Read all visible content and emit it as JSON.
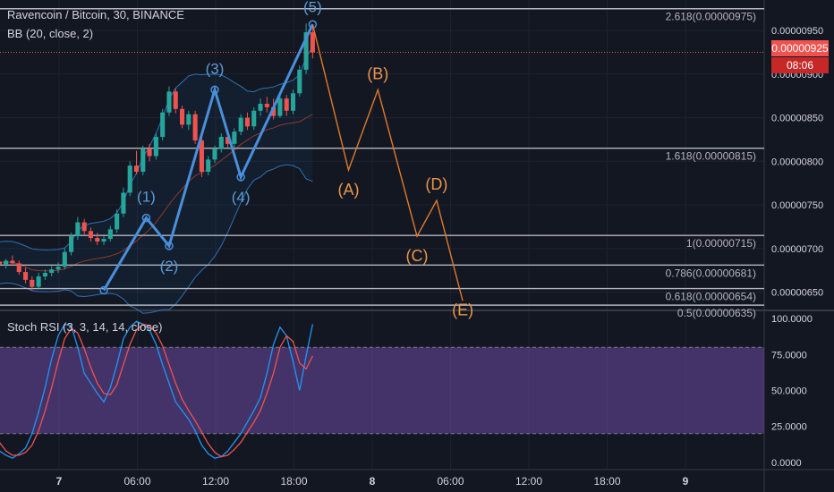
{
  "header": {
    "title": "Ravencoin / Bitcoin, 30, BINANCE",
    "bb_label": "BB (20, close, 2)",
    "stoch_label": "Stoch RSI (3, 3, 14, 14, close)"
  },
  "current_price": "0.00000925",
  "countdown": "08:06",
  "colors": {
    "background": "#131722",
    "up": "#26a69a",
    "down": "#ef5350",
    "wave": "#4a8fd9",
    "projection": "#e07a2c",
    "fib": "#b2b5be",
    "bb": "#2e72b5",
    "stoch_k": "#2196f3",
    "stoch_d": "#ef5350",
    "stoch_band": "#7e57c2"
  },
  "chart_data": [
    {
      "type": "candlestick",
      "title": "Ravencoin / Bitcoin, 30, BINANCE",
      "ylim": [
        6.3e-06,
        9.85e-06
      ],
      "y_ticks": [
        "0.00000950",
        "0.00000900",
        "0.00000850",
        "0.00000800",
        "0.00000750",
        "0.00000700",
        "0.00000650"
      ],
      "x_ticks": [
        "7",
        "06:00",
        "12:00",
        "18:00",
        "8",
        "06:00",
        "12:00",
        "18:00",
        "9"
      ],
      "last_price": 9.25e-06,
      "fib_levels": [
        {
          "label": "2.618(0.00000975)",
          "value": 9.75e-06
        },
        {
          "label": "1.618(0.00000815)",
          "value": 8.15e-06
        },
        {
          "label": "1(0.00000715)",
          "value": 7.15e-06
        },
        {
          "label": "0.786(0.00000681)",
          "value": 6.81e-06
        },
        {
          "label": "0.618(0.00000654)",
          "value": 6.54e-06
        },
        {
          "label": "0.5(0.00000635)",
          "value": 6.35e-06
        }
      ],
      "wave_labels": [
        "(1)",
        "(2)",
        "(3)",
        "(4)",
        "(5)"
      ],
      "wave_points": [
        {
          "t": -17,
          "v": 6.52e-06
        },
        {
          "t": -10.5,
          "v": 7.35e-06
        },
        {
          "t": -7,
          "v": 7.03e-06
        },
        {
          "t": 0,
          "v": 8.82e-06
        },
        {
          "t": 4,
          "v": 7.82e-06
        },
        {
          "t": 15,
          "v": 9.57e-06
        }
      ],
      "projection_labels": [
        "(A)",
        "(B)",
        "(C)",
        "(D)",
        "(E)"
      ],
      "projection_points": [
        {
          "t": 15,
          "v": 9.57e-06
        },
        {
          "t": 20.5,
          "v": 7.9e-06
        },
        {
          "t": 25,
          "v": 8.82e-06
        },
        {
          "t": 31,
          "v": 7.14e-06
        },
        {
          "t": 34,
          "v": 7.55e-06
        },
        {
          "t": 38,
          "v": 6.4e-06
        }
      ],
      "candles": [
        [
          6.88e-06,
          6.92e-06,
          6.8e-06,
          6.85e-06
        ],
        [
          6.85e-06,
          6.9e-06,
          6.78e-06,
          6.82e-06
        ],
        [
          6.82e-06,
          6.88e-06,
          6.77e-06,
          6.86e-06
        ],
        [
          6.86e-06,
          6.92e-06,
          6.8e-06,
          6.83e-06
        ],
        [
          6.83e-06,
          6.86e-06,
          6.7e-06,
          6.73e-06
        ],
        [
          6.73e-06,
          6.78e-06,
          6.6e-06,
          6.64e-06
        ],
        [
          6.64e-06,
          6.68e-06,
          6.52e-06,
          6.56e-06
        ],
        [
          6.56e-06,
          6.72e-06,
          6.54e-06,
          6.68e-06
        ],
        [
          6.68e-06,
          6.76e-06,
          6.64e-06,
          6.72e-06
        ],
        [
          6.72e-06,
          6.8e-06,
          6.68e-06,
          6.76e-06
        ],
        [
          6.76e-06,
          6.84e-06,
          6.72e-06,
          6.79e-06
        ],
        [
          6.79e-06,
          7e-06,
          6.76e-06,
          6.96e-06
        ],
        [
          6.96e-06,
          7.18e-06,
          6.92e-06,
          7.14e-06
        ],
        [
          7.14e-06,
          7.36e-06,
          7.1e-06,
          7.3e-06
        ],
        [
          7.3e-06,
          7.34e-06,
          7.16e-06,
          7.2e-06
        ],
        [
          7.2e-06,
          7.24e-06,
          7.08e-06,
          7.12e-06
        ],
        [
          7.12e-06,
          7.18e-06,
          7.04e-06,
          7.08e-06
        ],
        [
          7.08e-06,
          7.14e-06,
          7.04e-06,
          7.11e-06
        ],
        [
          7.11e-06,
          7.26e-06,
          7.08e-06,
          7.22e-06
        ],
        [
          7.22e-06,
          7.45e-06,
          7.18e-06,
          7.4e-06
        ],
        [
          7.4e-06,
          7.7e-06,
          7.36e-06,
          7.64e-06
        ],
        [
          7.64e-06,
          8e-06,
          7.6e-06,
          7.95e-06
        ],
        [
          7.95e-06,
          8.12e-06,
          7.85e-06,
          7.88e-06
        ],
        [
          7.88e-06,
          8.18e-06,
          7.84e-06,
          8.14e-06
        ],
        [
          8.14e-06,
          8.2e-06,
          8e-06,
          8.06e-06
        ],
        [
          8.06e-06,
          8.32e-06,
          8.02e-06,
          8.28e-06
        ],
        [
          8.28e-06,
          8.6e-06,
          8.24e-06,
          8.56e-06
        ],
        [
          8.56e-06,
          8.86e-06,
          8.52e-06,
          8.8e-06
        ],
        [
          8.8e-06,
          8.84e-06,
          8.55e-06,
          8.6e-06
        ],
        [
          8.6e-06,
          8.64e-06,
          8.38e-06,
          8.42e-06
        ],
        [
          8.42e-06,
          8.58e-06,
          8.36e-06,
          8.54e-06
        ],
        [
          8.54e-06,
          8.58e-06,
          8.2e-06,
          8.24e-06
        ],
        [
          8.24e-06,
          8.3e-06,
          7.82e-06,
          7.88e-06
        ],
        [
          7.88e-06,
          8.06e-06,
          7.84e-06,
          8.02e-06
        ],
        [
          8.02e-06,
          8.18e-06,
          7.98e-06,
          8.14e-06
        ],
        [
          8.14e-06,
          8.32e-06,
          8.1e-06,
          8.28e-06
        ],
        [
          8.28e-06,
          8.36e-06,
          8.16e-06,
          8.2e-06
        ],
        [
          8.2e-06,
          8.38e-06,
          8.16e-06,
          8.34e-06
        ],
        [
          8.34e-06,
          8.54e-06,
          8.3e-06,
          8.5e-06
        ],
        [
          8.5e-06,
          8.56e-06,
          8.36e-06,
          8.4e-06
        ],
        [
          8.4e-06,
          8.62e-06,
          8.36e-06,
          8.58e-06
        ],
        [
          8.58e-06,
          8.72e-06,
          8.52e-06,
          8.66e-06
        ],
        [
          8.66e-06,
          8.74e-06,
          8.56e-06,
          8.62e-06
        ],
        [
          8.62e-06,
          8.72e-06,
          8.48e-06,
          8.52e-06
        ],
        [
          8.52e-06,
          8.76e-06,
          8.5e-06,
          8.72e-06
        ],
        [
          8.72e-06,
          8.76e-06,
          8.52e-06,
          8.58e-06
        ],
        [
          8.58e-06,
          8.82e-06,
          8.54e-06,
          8.78e-06
        ],
        [
          8.78e-06,
          9.1e-06,
          8.74e-06,
          9.05e-06
        ],
        [
          9.05e-06,
          9.58e-06,
          9e-06,
          9.48e-06
        ],
        [
          9.48e-06,
          9.52e-06,
          9.18e-06,
          9.25e-06
        ]
      ]
    },
    {
      "type": "line",
      "title": "Stoch RSI (3, 3, 14, 14, close)",
      "ylim": [
        -5,
        105
      ],
      "y_ticks": [
        "100.0000",
        "75.0000",
        "50.0000",
        "25.0000",
        "0.0000"
      ],
      "band": [
        20,
        80
      ],
      "series": [
        {
          "name": "%K",
          "values": [
            18,
            8,
            5,
            3,
            6,
            10,
            20,
            35,
            52,
            72,
            88,
            96,
            95,
            80,
            62,
            55,
            48,
            42,
            52,
            68,
            86,
            94,
            98,
            96,
            92,
            82,
            68,
            55,
            42,
            36,
            30,
            22,
            12,
            6,
            3,
            4,
            8,
            14,
            20,
            28,
            36,
            45,
            62,
            82,
            94,
            88,
            70,
            50,
            74,
            96
          ]
        },
        {
          "name": "%D",
          "values": [
            22,
            14,
            8,
            5,
            5,
            7,
            12,
            22,
            36,
            52,
            70,
            86,
            93,
            90,
            79,
            66,
            55,
            48,
            47,
            54,
            68,
            82,
            92,
            96,
            95,
            90,
            81,
            68,
            55,
            44,
            36,
            29,
            21,
            13,
            7,
            4,
            5,
            9,
            14,
            21,
            28,
            36,
            48,
            62,
            80,
            88,
            84,
            69,
            65,
            74
          ]
        }
      ]
    }
  ]
}
